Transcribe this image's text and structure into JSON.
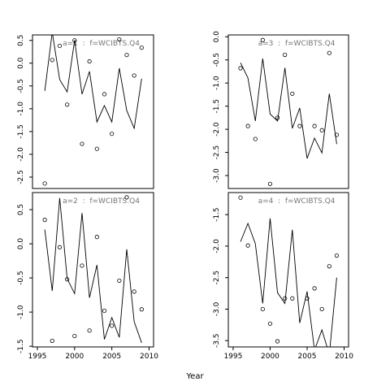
{
  "x_label": "Year",
  "chart_data": [
    {
      "type": "line",
      "title": "a=1  :  f=WCIBTS.Q4",
      "x": [
        1996,
        1997,
        1998,
        1999,
        2000,
        2001,
        2002,
        2003,
        2004,
        2005,
        2006,
        2007,
        2008,
        2009
      ],
      "series": [
        {
          "mode": "markers",
          "color": "#000000",
          "values": [
            -2.64,
            0.07,
            0.38,
            -0.91,
            0.5,
            -1.77,
            0.04,
            -1.88,
            -0.68,
            -1.55,
            0.52,
            0.18,
            -0.27,
            0.34
          ]
        },
        {
          "mode": "lines",
          "color": "#000000",
          "values": [
            -0.61,
            0.68,
            -0.36,
            -0.63,
            0.5,
            -0.68,
            -0.18,
            -1.29,
            -0.93,
            -1.29,
            -0.11,
            -1.04,
            -1.43,
            -0.34
          ]
        }
      ],
      "xlim": [
        1994.35,
        2010.6
      ],
      "ylim": [
        -2.75,
        0.62
      ],
      "yticks": [
        {
          "value": 0.5,
          "label": "0.5"
        },
        {
          "value": 0,
          "label": "0.0"
        },
        {
          "value": -0.5,
          "label": "-0.5"
        },
        {
          "value": -1,
          "label": "-1.0"
        },
        {
          "value": -1.5,
          "label": "-1.5"
        },
        {
          "value": -2,
          "label": "-2.0"
        },
        {
          "value": -2.5,
          "label": "-2.5"
        }
      ]
    },
    {
      "type": "line",
      "title": "a=2  :  f=WCIBTS.Q4",
      "x": [
        1996,
        1997,
        1998,
        1999,
        2000,
        2001,
        2002,
        2003,
        2004,
        2005,
        2006,
        2007,
        2008,
        2009
      ],
      "series": [
        {
          "mode": "markers",
          "color": "#000000",
          "values": [
            0.35,
            -1.42,
            -0.05,
            -0.52,
            -1.35,
            -0.32,
            -1.27,
            0.1,
            -0.98,
            -1.2,
            -0.54,
            0.68,
            -0.7,
            -0.96
          ]
        },
        {
          "mode": "lines",
          "color": "#000000",
          "values": [
            0.21,
            -0.69,
            0.67,
            -0.51,
            -0.73,
            0.45,
            -0.79,
            -0.31,
            -1.4,
            -1.08,
            -1.37,
            -0.08,
            -1.14,
            -1.45
          ]
        }
      ],
      "xlim": [
        1994.35,
        2010.6
      ],
      "ylim": [
        -1.51,
        0.75
      ],
      "yticks": [
        {
          "value": 0.5,
          "label": "0.5"
        },
        {
          "value": 0,
          "label": "0.0"
        },
        {
          "value": -0.5,
          "label": "-0.5"
        },
        {
          "value": -1,
          "label": "-1.0"
        },
        {
          "value": -1.5,
          "label": "-1.5"
        }
      ],
      "xticks": [
        1995,
        2000,
        2005,
        2010
      ]
    },
    {
      "type": "line",
      "title": "a=3  :  f=WCIBTS.Q4",
      "x": [
        1996,
        1997,
        1998,
        1999,
        2000,
        2001,
        2002,
        2003,
        2004,
        2005,
        2006,
        2007,
        2008,
        2009
      ],
      "series": [
        {
          "mode": "markers",
          "color": "#000000",
          "values": [
            -0.68,
            -1.93,
            -2.21,
            -0.07,
            -3.18,
            -1.75,
            -0.39,
            -1.23,
            -1.93,
            null,
            -1.93,
            -2.02,
            -0.35,
            -2.12
          ]
        },
        {
          "mode": "lines",
          "color": "#000000",
          "values": [
            -0.56,
            -0.89,
            -1.82,
            -0.47,
            -1.67,
            -1.82,
            -0.67,
            -1.98,
            -1.54,
            -2.63,
            -2.19,
            -2.51,
            -1.23,
            -2.32
          ]
        }
      ],
      "xlim": [
        1994.35,
        2010.6
      ],
      "ylim": [
        -3.28,
        0.04
      ],
      "yticks": [
        {
          "value": 0,
          "label": "0.0"
        },
        {
          "value": -0.5,
          "label": "-0.5"
        },
        {
          "value": -1,
          "label": "-1.0"
        },
        {
          "value": -1.5,
          "label": "-1.5"
        },
        {
          "value": -2,
          "label": "-2.0"
        },
        {
          "value": -2.5,
          "label": "-2.5"
        },
        {
          "value": -3,
          "label": "-3.0"
        }
      ]
    },
    {
      "type": "line",
      "title": "a=4  :  f=WCIBTS.Q4",
      "x": [
        1996,
        1997,
        1998,
        1999,
        2000,
        2001,
        2002,
        2003,
        2004,
        2005,
        2006,
        2007,
        2008,
        2009
      ],
      "series": [
        {
          "mode": "markers",
          "color": "#000000",
          "values": [
            -1.23,
            -1.99,
            null,
            -3.0,
            -3.23,
            -3.51,
            -2.83,
            -2.83,
            null,
            -2.83,
            -2.67,
            -3.0,
            -2.32,
            -2.15
          ]
        },
        {
          "mode": "lines",
          "color": "#000000",
          "values": [
            -1.93,
            -1.64,
            -1.96,
            -2.91,
            -1.56,
            -2.74,
            -2.91,
            -1.74,
            -3.22,
            -2.72,
            -3.65,
            -3.33,
            -3.72,
            -2.5
          ]
        }
      ],
      "xlim": [
        1994.35,
        2010.6
      ],
      "ylim": [
        -3.6,
        -1.15
      ],
      "yticks": [
        {
          "value": -1.5,
          "label": "-1.5"
        },
        {
          "value": -2,
          "label": "-2.0"
        },
        {
          "value": -2.5,
          "label": "-2.5"
        },
        {
          "value": -3,
          "label": "-3.0"
        },
        {
          "value": -3.5,
          "label": "-3.5"
        }
      ],
      "xticks": [
        1995,
        2000,
        2005,
        2010
      ]
    }
  ]
}
